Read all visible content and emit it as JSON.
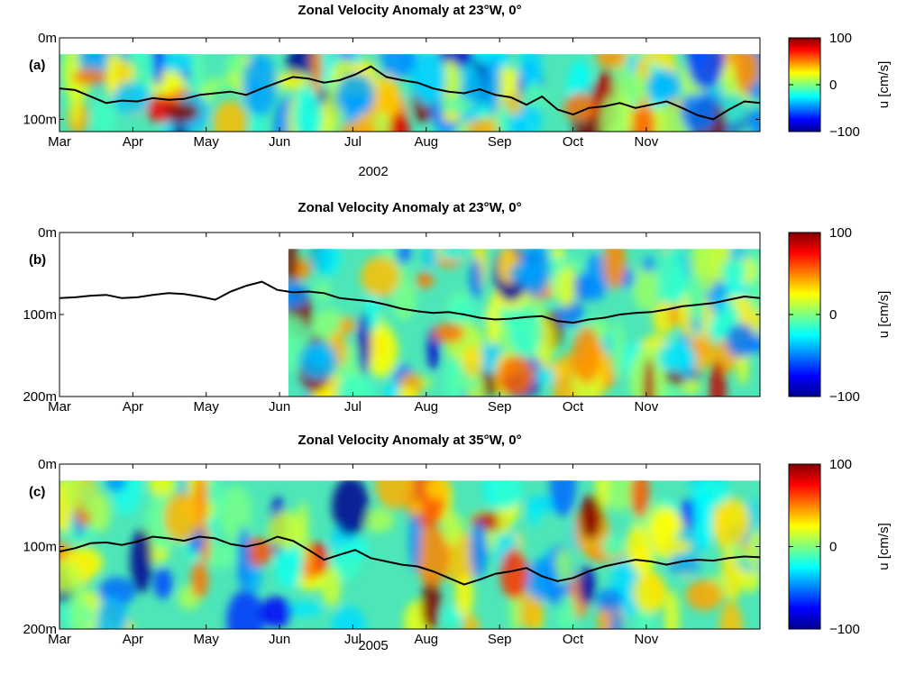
{
  "chart_data": [
    {
      "type": "heatmap",
      "panel_label": "(a)",
      "title": "Zonal Velocity Anomaly at 23°W, 0°",
      "year_label": "2002",
      "x_ticks": [
        "Mar",
        "Apr",
        "May",
        "Jun",
        "Jul",
        "Aug",
        "Sep",
        "Oct",
        "Nov"
      ],
      "y_ticks": [
        "0m",
        "100m"
      ],
      "y_tick_values": [
        0,
        100
      ],
      "ylim": [
        0,
        115
      ],
      "data_top_depth": 20,
      "data_start_month": 0,
      "xlim_months": [
        0,
        9.55
      ],
      "colorbar": {
        "label": "u [cm/s]",
        "ticks": [
          "100",
          "0",
          "−100"
        ],
        "range": [
          -100,
          100
        ]
      },
      "line_depths": [
        62,
        64,
        72,
        80,
        77,
        78,
        74,
        76,
        75,
        70,
        68,
        66,
        70,
        62,
        55,
        48,
        50,
        55,
        52,
        45,
        35,
        48,
        52,
        55,
        62,
        66,
        68,
        63,
        70,
        73,
        82,
        72,
        88,
        94,
        86,
        84,
        80,
        86,
        82,
        78,
        86,
        95,
        100,
        88,
        78,
        80
      ]
    },
    {
      "type": "heatmap",
      "panel_label": "(b)",
      "title": "Zonal Velocity Anomaly at 23°W, 0°",
      "year_label": "",
      "x_ticks": [
        "Mar",
        "Apr",
        "May",
        "Jun",
        "Jul",
        "Aug",
        "Sep",
        "Oct",
        "Nov"
      ],
      "y_ticks": [
        "0m",
        "100m",
        "200m"
      ],
      "y_tick_values": [
        0,
        100,
        200
      ],
      "ylim": [
        0,
        200
      ],
      "data_top_depth": 20,
      "data_start_month": 3.12,
      "xlim_months": [
        0,
        9.55
      ],
      "colorbar": {
        "label": "u [cm/s]",
        "ticks": [
          "100",
          "0",
          "−100"
        ],
        "range": [
          -100,
          100
        ]
      },
      "line_depths": [
        80,
        79,
        77,
        76,
        80,
        79,
        76,
        74,
        75,
        78,
        82,
        72,
        65,
        60,
        70,
        73,
        72,
        74,
        80,
        82,
        84,
        88,
        93,
        96,
        98,
        97,
        100,
        104,
        106,
        105,
        103,
        102,
        108,
        110,
        106,
        104,
        100,
        98,
        97,
        94,
        90,
        88,
        86,
        82,
        78,
        80
      ]
    },
    {
      "type": "heatmap",
      "panel_label": "(c)",
      "title": "Zonal Velocity Anomaly at 35°W, 0°",
      "year_label": "2005",
      "x_ticks": [
        "Mar",
        "Apr",
        "May",
        "Jun",
        "Jul",
        "Aug",
        "Sep",
        "Oct",
        "Nov"
      ],
      "y_ticks": [
        "0m",
        "100m",
        "200m"
      ],
      "y_tick_values": [
        0,
        100,
        200
      ],
      "ylim": [
        0,
        200
      ],
      "data_top_depth": 20,
      "data_start_month": 0,
      "xlim_months": [
        0,
        9.55
      ],
      "colorbar": {
        "label": "u [cm/s]",
        "ticks": [
          "100",
          "0",
          "−100"
        ],
        "range": [
          -100,
          100
        ]
      },
      "line_depths": [
        106,
        102,
        96,
        95,
        98,
        94,
        88,
        90,
        93,
        88,
        90,
        97,
        100,
        96,
        88,
        93,
        104,
        116,
        110,
        104,
        114,
        118,
        122,
        124,
        130,
        138,
        146,
        140,
        133,
        130,
        126,
        136,
        142,
        138,
        130,
        124,
        120,
        116,
        118,
        122,
        118,
        116,
        117,
        114,
        112,
        113
      ]
    }
  ]
}
